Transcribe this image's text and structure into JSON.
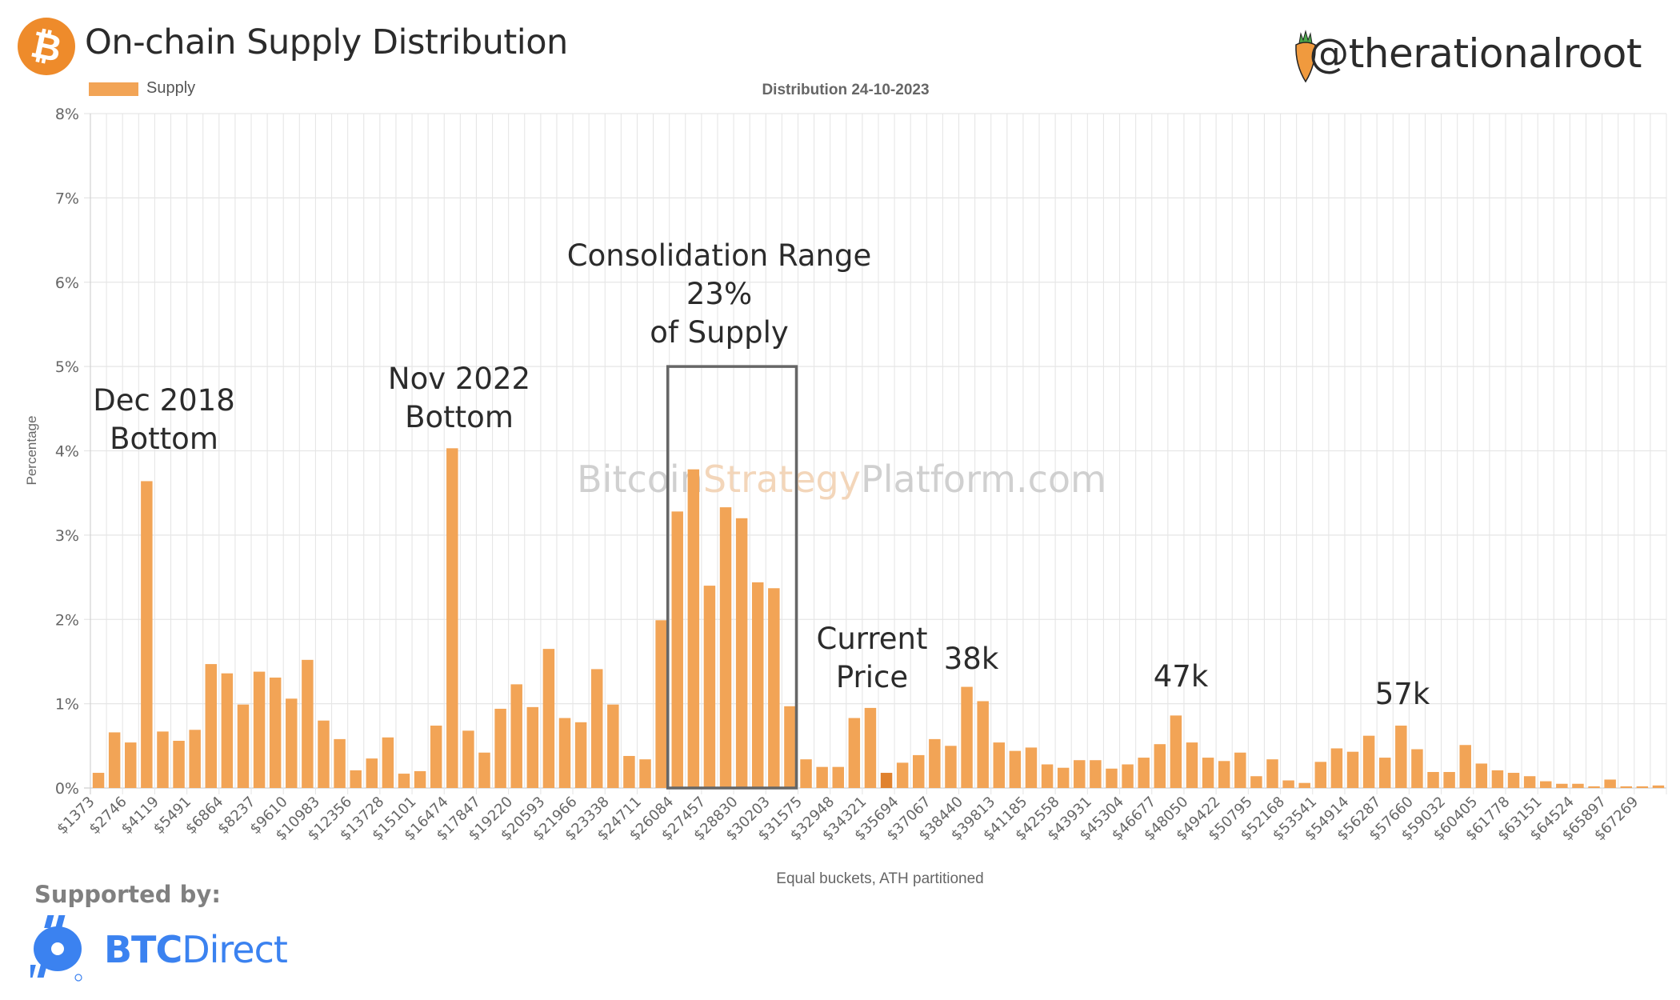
{
  "header": {
    "title": "On-chain Supply Distribution",
    "handle": "@therationalroot",
    "logo_icon": "bitcoin-icon",
    "handle_icon": "carrot-icon"
  },
  "legend": {
    "label": "Supply",
    "color": "#F2A456"
  },
  "footer": {
    "supported_label": "Supported by:",
    "sponsor_bold": "BTC",
    "sponsor_light": "Direct",
    "sponsor_icon": "btc-direct-logo-icon",
    "sponsor_color": "#3B82F0"
  },
  "watermark": {
    "part1": "Bitcoin",
    "part2": "Strategy",
    "part3": "Platform.com"
  },
  "colors": {
    "bar": "#F2A456",
    "highlight_bar": "#E0822F",
    "grid": "#E6E6E6",
    "box": "#666666",
    "text": "#2B2B2B"
  },
  "chart_data": {
    "type": "bar",
    "title": "On-chain Supply Distribution",
    "subtitle": "Distribution 24-10-2023",
    "xlabel": "Equal buckets, ATH partitioned",
    "ylabel": "Percentage",
    "ylim": [
      0,
      8
    ],
    "yticks": [
      "0%",
      "1%",
      "2%",
      "3%",
      "4%",
      "5%",
      "6%",
      "7%",
      "8%"
    ],
    "grid": true,
    "legend_position": "top-left",
    "highlight_index": 49,
    "tick_labels": [
      "$1373",
      "$2746",
      "$4119",
      "$5491",
      "$6864",
      "$8237",
      "$9610",
      "$10983",
      "$12356",
      "$13728",
      "$15101",
      "$16474",
      "$17847",
      "$19220",
      "$20593",
      "$21966",
      "$23338",
      "$24711",
      "$26084",
      "$27457",
      "$28830",
      "$30203",
      "$31575",
      "$32948",
      "$34321",
      "$35694",
      "$37067",
      "$38440",
      "$39813",
      "$41185",
      "$42558",
      "$43931",
      "$45304",
      "$46677",
      "$48050",
      "$49422",
      "$50795",
      "$52168",
      "$53541",
      "$54914",
      "$56287",
      "$57660",
      "$59032",
      "$60405",
      "$61778",
      "$63151",
      "$64524",
      "$65897",
      "$67269"
    ],
    "tick_every": 2,
    "series": [
      {
        "name": "Supply",
        "values": [
          0.18,
          0.66,
          0.54,
          3.64,
          0.67,
          0.56,
          0.69,
          1.47,
          1.36,
          0.99,
          1.38,
          1.31,
          1.06,
          1.52,
          0.8,
          0.58,
          0.21,
          0.35,
          0.6,
          0.17,
          0.2,
          0.74,
          4.03,
          0.68,
          0.42,
          0.94,
          1.23,
          0.96,
          1.65,
          0.83,
          0.78,
          1.41,
          0.99,
          0.38,
          0.34,
          1.99,
          3.28,
          3.78,
          2.4,
          3.33,
          3.2,
          2.44,
          2.37,
          0.97,
          0.34,
          0.25,
          0.25,
          0.83,
          0.95,
          0.18,
          0.3,
          0.39,
          0.58,
          0.5,
          1.2,
          1.03,
          0.54,
          0.44,
          0.48,
          0.28,
          0.24,
          0.33,
          0.33,
          0.23,
          0.28,
          0.36,
          0.52,
          0.86,
          0.54,
          0.36,
          0.32,
          0.42,
          0.14,
          0.34,
          0.09,
          0.06,
          0.31,
          0.47,
          0.43,
          0.62,
          0.36,
          0.74,
          0.46,
          0.19,
          0.19,
          0.51,
          0.29,
          0.21,
          0.18,
          0.14,
          0.08,
          0.05,
          0.05,
          0.02,
          0.1,
          0.02,
          0.02,
          0.03
        ]
      }
    ],
    "annotations": [
      {
        "lines": [
          "Dec 2018",
          "Bottom"
        ],
        "bar_index": 3
      },
      {
        "lines": [
          "Nov 2022",
          "Bottom"
        ],
        "bar_index": 22
      },
      {
        "lines": [
          "Consolidation Range",
          "23%",
          "of Supply"
        ],
        "range": [
          36,
          43
        ]
      },
      {
        "lines": [
          "Current",
          "Price"
        ],
        "bar_index": 49
      },
      {
        "lines": [
          "38k"
        ],
        "bar_index": 55
      },
      {
        "lines": [
          "47k"
        ],
        "bar_index": 68
      },
      {
        "lines": [
          "57k"
        ],
        "bar_index": 82
      }
    ]
  }
}
